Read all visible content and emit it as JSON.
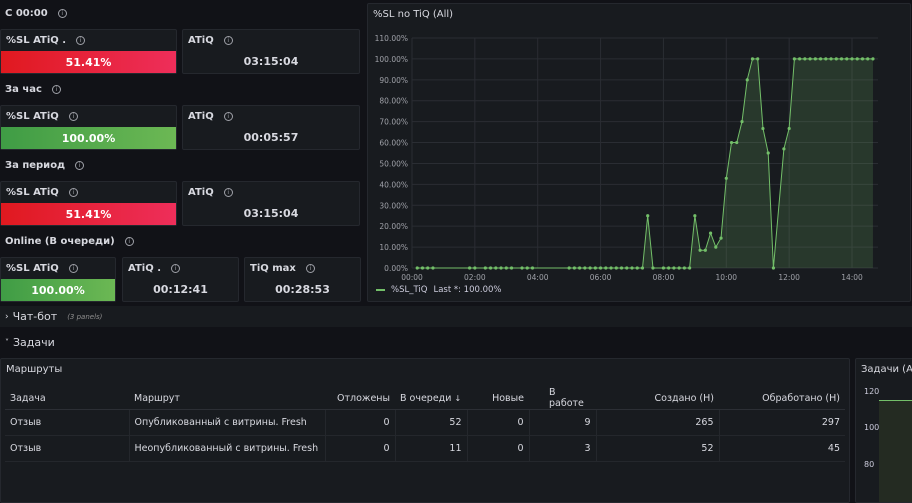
{
  "groups": [
    {
      "title": "С 00:00",
      "sl": {
        "label": "%SL ATiQ .",
        "value": "51.41%",
        "status": "red"
      },
      "atiq": {
        "label": "ATiQ",
        "value": "03:15:04"
      }
    },
    {
      "title": "За час",
      "sl": {
        "label": "%SL ATiQ",
        "value": "100.00%",
        "status": "green"
      },
      "atiq": {
        "label": "ATiQ",
        "value": "00:05:57"
      }
    },
    {
      "title": "За период",
      "sl": {
        "label": "%SL ATiQ",
        "value": "51.41%",
        "status": "red"
      },
      "atiq": {
        "label": "ATiQ",
        "value": "03:15:04"
      }
    }
  ],
  "online": {
    "title": "Online (В очереди)",
    "sl": {
      "label": "%SL ATiQ",
      "value": "100.00%",
      "status": "green"
    },
    "atiq": {
      "label": "ATiQ .",
      "value": "00:12:41"
    },
    "tiqmax": {
      "label": "TiQ max",
      "value": "00:28:53"
    }
  },
  "colors": {
    "red": "#e0191f",
    "green": "#73bf69",
    "bg": "#111217",
    "panel": "#181b1f"
  },
  "chart_data": {
    "type": "line",
    "title": "%SL no TiQ (All)",
    "ylim": [
      0,
      110
    ],
    "yticks": [
      "0.00%",
      "10.00%",
      "20.00%",
      "30.00%",
      "40.00%",
      "50.00%",
      "60.00%",
      "70.00%",
      "80.00%",
      "90.00%",
      "100.00%",
      "110.00%"
    ],
    "xticks": [
      "00:00",
      "02:00",
      "04:00",
      "06:00",
      "08:00",
      "10:00",
      "12:00",
      "14:00"
    ],
    "grid": true,
    "legend_placement": "bottom-left",
    "series": [
      {
        "name": "%SL_TiQ",
        "legend": "Last *: 100.00%",
        "color": "#73bf69",
        "points": [
          [
            "00:10",
            0
          ],
          [
            "00:20",
            0
          ],
          [
            "00:30",
            0
          ],
          [
            "00:40",
            0
          ],
          [
            "01:50",
            0
          ],
          [
            "02:00",
            0
          ],
          [
            "02:20",
            0
          ],
          [
            "02:30",
            0
          ],
          [
            "02:40",
            0
          ],
          [
            "02:50",
            0
          ],
          [
            "03:00",
            0
          ],
          [
            "03:10",
            0
          ],
          [
            "03:30",
            0
          ],
          [
            "03:40",
            0
          ],
          [
            "03:50",
            0
          ],
          [
            "05:00",
            0
          ],
          [
            "05:10",
            0
          ],
          [
            "05:20",
            0
          ],
          [
            "05:30",
            0
          ],
          [
            "05:40",
            0
          ],
          [
            "05:50",
            0
          ],
          [
            "06:00",
            0
          ],
          [
            "06:10",
            0
          ],
          [
            "06:20",
            0
          ],
          [
            "06:30",
            0
          ],
          [
            "06:40",
            0
          ],
          [
            "06:50",
            0
          ],
          [
            "07:00",
            0
          ],
          [
            "07:10",
            0
          ],
          [
            "07:20",
            0
          ],
          [
            "07:30",
            25
          ],
          [
            "07:40",
            0
          ],
          [
            "08:00",
            0
          ],
          [
            "08:10",
            0
          ],
          [
            "08:20",
            0
          ],
          [
            "08:30",
            0
          ],
          [
            "08:40",
            0
          ],
          [
            "08:50",
            0
          ],
          [
            "09:00",
            25
          ],
          [
            "09:10",
            8.5
          ],
          [
            "09:20",
            8.5
          ],
          [
            "09:30",
            16.7
          ],
          [
            "09:40",
            10
          ],
          [
            "09:50",
            14.3
          ],
          [
            "10:00",
            42.9
          ],
          [
            "10:10",
            60
          ],
          [
            "10:20",
            60
          ],
          [
            "10:30",
            70
          ],
          [
            "10:40",
            90
          ],
          [
            "10:50",
            100
          ],
          [
            "11:00",
            100
          ],
          [
            "11:10",
            66.7
          ],
          [
            "11:20",
            55
          ],
          [
            "11:30",
            0
          ],
          [
            "11:50",
            57
          ],
          [
            "12:00",
            66.7
          ],
          [
            "12:10",
            100
          ],
          [
            "12:20",
            100
          ],
          [
            "12:30",
            100
          ],
          [
            "12:40",
            100
          ],
          [
            "12:50",
            100
          ],
          [
            "13:00",
            100
          ],
          [
            "13:10",
            100
          ],
          [
            "13:20",
            100
          ],
          [
            "13:30",
            100
          ],
          [
            "13:40",
            100
          ],
          [
            "13:50",
            100
          ],
          [
            "14:00",
            100
          ],
          [
            "14:10",
            100
          ],
          [
            "14:20",
            100
          ],
          [
            "14:30",
            100
          ],
          [
            "14:40",
            100
          ]
        ]
      }
    ]
  },
  "rows": {
    "chatbot": {
      "title": "Чат-бот",
      "count": "(3 panels)"
    },
    "tasks": {
      "title": "Задачи"
    }
  },
  "routes": {
    "title": "Маршруты",
    "columns": [
      "Задача",
      "Маршрут",
      "Отложены",
      "В очереди",
      "Новые",
      "В работе",
      "Создано (Н)",
      "Обработано (Н)"
    ],
    "sort_icon": "↓",
    "rows": [
      [
        "Отзыв",
        "Опубликованный с витрины. Fresh",
        "0",
        "52",
        "0",
        "9",
        "265",
        "297"
      ],
      [
        "Отзыв",
        "Неопубликованный с витрины. Fresh",
        "0",
        "11",
        "0",
        "3",
        "52",
        "45"
      ]
    ]
  },
  "tasks_chart": {
    "title": "Задачи (All)",
    "yticks": [
      "120",
      "100",
      "80"
    ]
  }
}
